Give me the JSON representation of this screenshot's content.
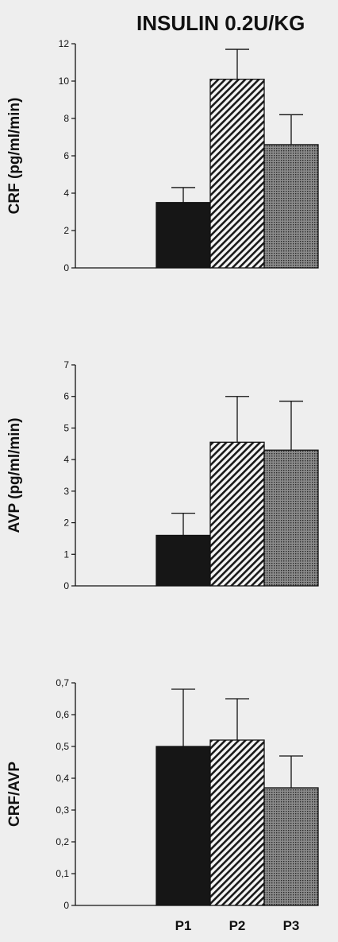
{
  "title": "INSULIN  0.2U/KG",
  "colors": {
    "P1": "#161616",
    "P2": "#8a8a8a",
    "P3": "#5a5a5a"
  },
  "chart_data": [
    {
      "type": "bar",
      "ylabel": "CRF (pg/ml/min)",
      "categories": [
        "P1",
        "P2",
        "P3"
      ],
      "values": [
        3.5,
        10.1,
        6.6
      ],
      "errors": [
        0.8,
        1.6,
        1.6
      ],
      "ylim": [
        0,
        12
      ],
      "yticks": [
        0,
        2,
        4,
        6,
        8,
        10,
        12
      ],
      "ytick_labels": [
        "0",
        "2",
        "4",
        "6",
        "8",
        "10",
        "12"
      ]
    },
    {
      "type": "bar",
      "ylabel": "AVP (pg/ml/min)",
      "categories": [
        "P1",
        "P2",
        "P3"
      ],
      "values": [
        1.6,
        4.55,
        4.3
      ],
      "errors": [
        0.7,
        1.45,
        1.55
      ],
      "ylim": [
        0,
        7
      ],
      "yticks": [
        0,
        1,
        2,
        3,
        4,
        5,
        6,
        7
      ],
      "ytick_labels": [
        "0",
        "1",
        "2",
        "3",
        "4",
        "5",
        "6",
        "7"
      ]
    },
    {
      "type": "bar",
      "ylabel": "CRF/AVP",
      "categories": [
        "P1",
        "P2",
        "P3"
      ],
      "values": [
        0.5,
        0.52,
        0.37
      ],
      "errors": [
        0.18,
        0.13,
        0.1
      ],
      "ylim": [
        0,
        0.7
      ],
      "yticks": [
        0,
        0.1,
        0.2,
        0.3,
        0.4,
        0.5,
        0.6,
        0.7
      ],
      "ytick_labels": [
        "0",
        "0,1",
        "0,2",
        "0,3",
        "0,4",
        "0,5",
        "0,6",
        "0,7"
      ]
    }
  ]
}
